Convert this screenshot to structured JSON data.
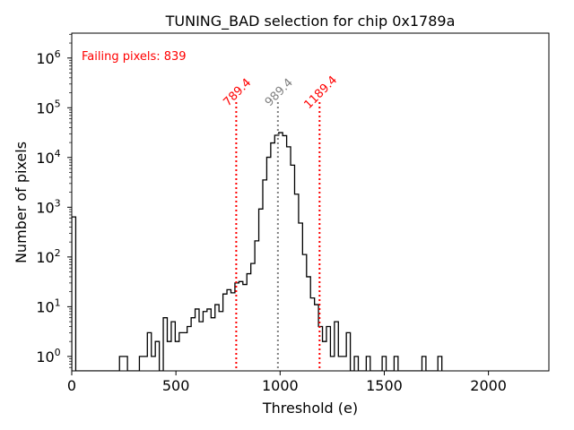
{
  "chart_data": {
    "type": "histogram",
    "title": "TUNING_BAD selection for chip 0x1789a",
    "xlabel": "Threshold (e)",
    "ylabel": "Number of pixels",
    "xlim": [
      0,
      2290
    ],
    "ylim_log10": [
      -0.29,
      6.5
    ],
    "yscale": "log",
    "xticks": [
      0,
      500,
      1000,
      1500,
      2000
    ],
    "xtick_labels": [
      "0",
      "500",
      "1000",
      "1500",
      "2000"
    ],
    "yticks_exp": [
      0,
      1,
      2,
      3,
      4,
      5,
      6
    ],
    "ytick_base": "10",
    "grid": false,
    "bin_width": 19.1,
    "bins": [
      {
        "i": 0,
        "count": 640
      },
      {
        "i": 12,
        "count": 1
      },
      {
        "i": 13,
        "count": 1
      },
      {
        "i": 17,
        "count": 1
      },
      {
        "i": 18,
        "count": 1
      },
      {
        "i": 19,
        "count": 3
      },
      {
        "i": 20,
        "count": 1
      },
      {
        "i": 21,
        "count": 2
      },
      {
        "i": 22,
        "count": 0
      },
      {
        "i": 23,
        "count": 6
      },
      {
        "i": 24,
        "count": 2
      },
      {
        "i": 25,
        "count": 5
      },
      {
        "i": 26,
        "count": 2
      },
      {
        "i": 27,
        "count": 3
      },
      {
        "i": 28,
        "count": 3
      },
      {
        "i": 29,
        "count": 4
      },
      {
        "i": 30,
        "count": 6
      },
      {
        "i": 31,
        "count": 9
      },
      {
        "i": 32,
        "count": 5
      },
      {
        "i": 33,
        "count": 8
      },
      {
        "i": 34,
        "count": 9
      },
      {
        "i": 35,
        "count": 6
      },
      {
        "i": 36,
        "count": 11
      },
      {
        "i": 37,
        "count": 8
      },
      {
        "i": 38,
        "count": 18
      },
      {
        "i": 39,
        "count": 22
      },
      {
        "i": 40,
        "count": 19
      },
      {
        "i": 41,
        "count": 30
      },
      {
        "i": 42,
        "count": 32
      },
      {
        "i": 43,
        "count": 28
      },
      {
        "i": 44,
        "count": 46
      },
      {
        "i": 45,
        "count": 74
      },
      {
        "i": 46,
        "count": 211
      },
      {
        "i": 47,
        "count": 922
      },
      {
        "i": 48,
        "count": 3540
      },
      {
        "i": 49,
        "count": 10100
      },
      {
        "i": 50,
        "count": 19600
      },
      {
        "i": 51,
        "count": 28000
      },
      {
        "i": 52,
        "count": 31600
      },
      {
        "i": 53,
        "count": 27500
      },
      {
        "i": 54,
        "count": 16400
      },
      {
        "i": 55,
        "count": 7000
      },
      {
        "i": 56,
        "count": 1830
      },
      {
        "i": 57,
        "count": 480
      },
      {
        "i": 58,
        "count": 112
      },
      {
        "i": 59,
        "count": 40
      },
      {
        "i": 60,
        "count": 15
      },
      {
        "i": 61,
        "count": 11
      },
      {
        "i": 62,
        "count": 4
      },
      {
        "i": 63,
        "count": 2
      },
      {
        "i": 64,
        "count": 4
      },
      {
        "i": 65,
        "count": 1
      },
      {
        "i": 66,
        "count": 5
      },
      {
        "i": 67,
        "count": 1
      },
      {
        "i": 68,
        "count": 1
      },
      {
        "i": 69,
        "count": 3
      },
      {
        "i": 70,
        "count": 0
      },
      {
        "i": 71,
        "count": 1
      },
      {
        "i": 74,
        "count": 1
      },
      {
        "i": 78,
        "count": 1
      },
      {
        "i": 81,
        "count": 1
      },
      {
        "i": 88,
        "count": 1
      },
      {
        "i": 92,
        "count": 1
      }
    ],
    "vlines": [
      {
        "x": 789.4,
        "label": "789.4",
        "color": "#ff0000",
        "style": "dotted",
        "top_count": 130000
      },
      {
        "x": 989.4,
        "label": "989.4",
        "color": "#808080",
        "style": "dotted",
        "top_count": 130000
      },
      {
        "x": 1189.4,
        "label": "1189.4",
        "color": "#ff0000",
        "style": "dotted",
        "top_count": 130000
      }
    ],
    "annotations": [
      {
        "text": "Failing pixels: 839",
        "color": "#ff0000",
        "placement": "top-left"
      }
    ],
    "colors": {
      "histogram": "#000000",
      "background": "#ffffff"
    }
  }
}
